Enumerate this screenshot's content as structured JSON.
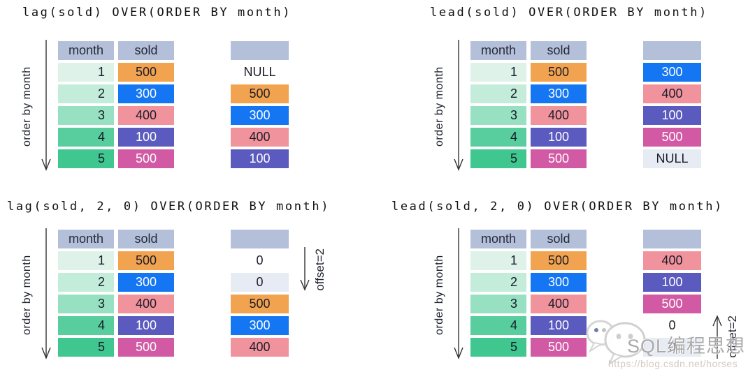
{
  "palette": {
    "header_bg": "#b4c0d9",
    "month_bg": [
      "#def2e9",
      "#c3ecdb",
      "#97e0c2",
      "#58cd9e",
      "#3fc78f"
    ],
    "sold_styles": [
      "orange",
      "blue",
      "pink",
      "indigo",
      "magenta"
    ],
    "styles": {
      "orange": {
        "bg": "#f1a350",
        "fg": "#1c1c28"
      },
      "blue": {
        "bg": "#1476f2",
        "fg": "#ffffff"
      },
      "pink": {
        "bg": "#f0939c",
        "fg": "#1c1c28"
      },
      "indigo": {
        "bg": "#5a5abf",
        "fg": "#ffffff"
      },
      "magenta": {
        "bg": "#d25aa4",
        "fg": "#ffffff"
      },
      "plain": {
        "bg": "transparent",
        "fg": "#1c1c28"
      },
      "light": {
        "bg": "#e7ebf4",
        "fg": "#1c1c28"
      }
    },
    "arrow_color": "#333333"
  },
  "quadrants": [
    {
      "title": "lag(sold) OVER(ORDER BY month)",
      "axis_label": "order by month",
      "columns": [
        "month",
        "sold"
      ],
      "rows": [
        {
          "month": "1",
          "sold": "500"
        },
        {
          "month": "2",
          "sold": "300"
        },
        {
          "month": "3",
          "sold": "400"
        },
        {
          "month": "4",
          "sold": "100"
        },
        {
          "month": "5",
          "sold": "500"
        }
      ],
      "result": [
        {
          "value": "NULL",
          "style": "plain"
        },
        {
          "value": "500",
          "style": "orange"
        },
        {
          "value": "300",
          "style": "blue"
        },
        {
          "value": "400",
          "style": "pink"
        },
        {
          "value": "100",
          "style": "indigo"
        }
      ],
      "offset": null
    },
    {
      "title": "lead(sold) OVER(ORDER BY month)",
      "axis_label": "order by month",
      "columns": [
        "month",
        "sold"
      ],
      "rows": [
        {
          "month": "1",
          "sold": "500"
        },
        {
          "month": "2",
          "sold": "300"
        },
        {
          "month": "3",
          "sold": "400"
        },
        {
          "month": "4",
          "sold": "100"
        },
        {
          "month": "5",
          "sold": "500"
        }
      ],
      "result": [
        {
          "value": "300",
          "style": "blue"
        },
        {
          "value": "400",
          "style": "pink"
        },
        {
          "value": "100",
          "style": "indigo"
        },
        {
          "value": "500",
          "style": "magenta"
        },
        {
          "value": "NULL",
          "style": "light"
        }
      ],
      "offset": null
    },
    {
      "title": "lag(sold, 2, 0) OVER(ORDER BY month)",
      "axis_label": "order by month",
      "columns": [
        "month",
        "sold"
      ],
      "rows": [
        {
          "month": "1",
          "sold": "500"
        },
        {
          "month": "2",
          "sold": "300"
        },
        {
          "month": "3",
          "sold": "400"
        },
        {
          "month": "4",
          "sold": "100"
        },
        {
          "month": "5",
          "sold": "500"
        }
      ],
      "result": [
        {
          "value": "0",
          "style": "plain"
        },
        {
          "value": "0",
          "style": "light"
        },
        {
          "value": "500",
          "style": "orange"
        },
        {
          "value": "300",
          "style": "blue"
        },
        {
          "value": "400",
          "style": "pink"
        }
      ],
      "offset": {
        "label": "offset=2",
        "direction": "down"
      }
    },
    {
      "title": "lead(sold, 2, 0) OVER(ORDER BY month)",
      "axis_label": "order by month",
      "columns": [
        "month",
        "sold"
      ],
      "rows": [
        {
          "month": "1",
          "sold": "500"
        },
        {
          "month": "2",
          "sold": "300"
        },
        {
          "month": "3",
          "sold": "400"
        },
        {
          "month": "4",
          "sold": "100"
        },
        {
          "month": "5",
          "sold": "500"
        }
      ],
      "result": [
        {
          "value": "400",
          "style": "pink"
        },
        {
          "value": "100",
          "style": "indigo"
        },
        {
          "value": "500",
          "style": "magenta"
        },
        {
          "value": "0",
          "style": "plain"
        },
        {
          "value": "0",
          "style": "light"
        }
      ],
      "offset": {
        "label": "offset=2",
        "direction": "up"
      }
    }
  ],
  "watermark": {
    "logo": "wechat-icon",
    "brand": "SQL编程思想",
    "url": "https://blog.csdn.net/horses"
  }
}
